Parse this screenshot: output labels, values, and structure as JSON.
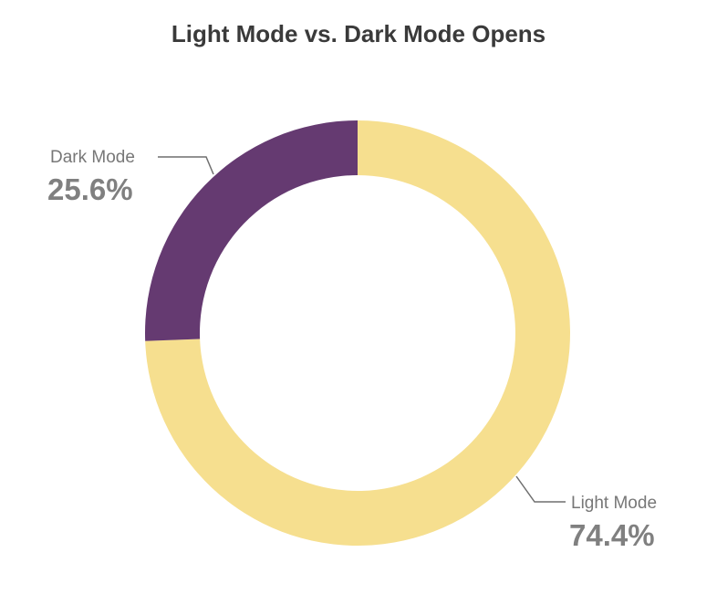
{
  "chart_data": {
    "type": "pie",
    "title": "Light Mode vs. Dark Mode Opens",
    "slices": [
      {
        "label": "Light Mode",
        "value": 74.4,
        "display": "74.4%",
        "color": "#f6df8f"
      },
      {
        "label": "Dark Mode",
        "value": 25.6,
        "display": "25.6%",
        "color": "#653a71"
      }
    ],
    "donut": true,
    "legend": "none",
    "label_style": "callouts"
  },
  "colors": {
    "leader_line": "#6f6f6f",
    "label_text": "#777777"
  }
}
